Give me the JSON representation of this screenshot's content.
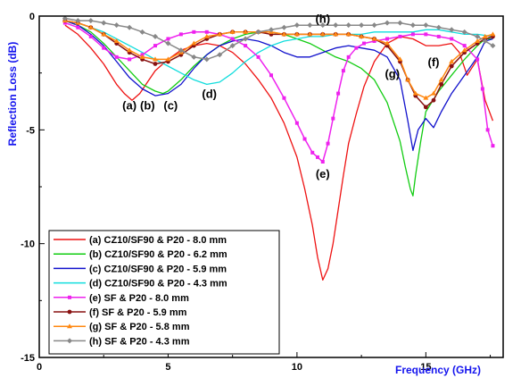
{
  "chart_data": {
    "type": "line",
    "title": "",
    "xlabel": "Frequency (GHz)",
    "ylabel": "Reflection Loss (dB)",
    "xlim": [
      0,
      18
    ],
    "ylim": [
      -15,
      0
    ],
    "x_ticks": [
      "0",
      "5",
      "10",
      "15"
    ],
    "y_ticks": [
      "0",
      "-5",
      "-10",
      "-15"
    ],
    "grid": false,
    "legend_position": "bottom-left",
    "series": [
      {
        "name": "(a) CZ10/SF90 & P20 - 8.0 mm",
        "color": "#ee1111",
        "marker": "none",
        "label": "(a)",
        "x": [
          1.0,
          1.5,
          2.0,
          2.5,
          3.0,
          3.3,
          3.6,
          3.9,
          4.2,
          4.5,
          5.0,
          5.5,
          6.0,
          6.5,
          7.0,
          7.5,
          8.0,
          8.5,
          9.0,
          9.5,
          10.0,
          10.3,
          10.6,
          10.8,
          11.0,
          11.2,
          11.4,
          11.6,
          11.8,
          12.0,
          12.3,
          12.6,
          13.0,
          13.5,
          14.0,
          14.5,
          15.0,
          15.5,
          16.0,
          16.3,
          16.6,
          17.0,
          17.3,
          17.6
        ],
        "y": [
          -0.4,
          -0.8,
          -1.4,
          -2.1,
          -3.0,
          -3.4,
          -3.7,
          -3.4,
          -2.9,
          -2.4,
          -1.9,
          -1.5,
          -1.3,
          -1.2,
          -1.3,
          -1.6,
          -2.1,
          -2.8,
          -3.6,
          -4.7,
          -6.2,
          -7.6,
          -9.2,
          -10.6,
          -11.6,
          -11.1,
          -10.0,
          -8.5,
          -7.0,
          -5.6,
          -4.3,
          -3.1,
          -2.0,
          -1.2,
          -0.9,
          -1.0,
          -1.3,
          -1.3,
          -1.2,
          -1.6,
          -2.6,
          -1.9,
          -3.7,
          -4.6
        ]
      },
      {
        "name": "(b) CZ10/SF90 & P20 - 6.2 mm",
        "color": "#11cc11",
        "marker": "none",
        "label": "(b)",
        "x": [
          1.0,
          1.5,
          2.0,
          2.5,
          3.0,
          3.5,
          4.0,
          4.5,
          4.8,
          5.0,
          5.5,
          6.0,
          6.5,
          7.0,
          7.5,
          8.0,
          8.5,
          9.0,
          9.5,
          10.0,
          10.5,
          11.0,
          11.5,
          12.0,
          12.5,
          13.0,
          13.5,
          14.0,
          14.2,
          14.4,
          14.5,
          14.6,
          14.8,
          15.0,
          15.5,
          16.0,
          16.5,
          17.0,
          17.3,
          17.6
        ],
        "y": [
          -0.2,
          -0.4,
          -0.7,
          -1.2,
          -1.8,
          -2.4,
          -3.0,
          -3.3,
          -3.4,
          -3.3,
          -2.8,
          -2.2,
          -1.7,
          -1.3,
          -1.0,
          -0.8,
          -0.7,
          -0.7,
          -0.8,
          -1.0,
          -1.2,
          -1.5,
          -1.8,
          -2.0,
          -2.3,
          -2.8,
          -3.8,
          -5.5,
          -6.6,
          -7.6,
          -7.9,
          -7.0,
          -5.5,
          -4.2,
          -3.3,
          -2.6,
          -1.9,
          -1.3,
          -1.0,
          -1.0
        ]
      },
      {
        "name": "(c) CZ10/SF90 & P20 - 5.9 mm",
        "color": "#1111cc",
        "marker": "none",
        "label": "(c)",
        "x": [
          1.0,
          1.5,
          2.0,
          2.5,
          3.0,
          3.5,
          4.0,
          4.5,
          5.0,
          5.5,
          6.0,
          6.5,
          7.0,
          7.5,
          8.0,
          8.5,
          9.0,
          9.5,
          10.0,
          10.5,
          11.0,
          11.5,
          12.0,
          12.5,
          13.0,
          13.5,
          14.0,
          14.3,
          14.5,
          14.7,
          15.0,
          15.3,
          15.6,
          16.0,
          16.5,
          17.0,
          17.3,
          17.6
        ],
        "y": [
          -0.2,
          -0.4,
          -0.8,
          -1.3,
          -2.0,
          -2.7,
          -3.2,
          -3.5,
          -3.4,
          -3.0,
          -2.3,
          -1.7,
          -1.3,
          -1.1,
          -1.0,
          -1.1,
          -1.3,
          -1.6,
          -1.8,
          -1.8,
          -1.6,
          -1.4,
          -1.3,
          -1.4,
          -1.5,
          -1.8,
          -2.8,
          -4.6,
          -5.9,
          -5.0,
          -4.5,
          -4.9,
          -4.2,
          -3.4,
          -2.6,
          -1.8,
          -1.1,
          -1.0
        ]
      },
      {
        "name": "(d) CZ10/SF90 & P20 - 4.3 mm",
        "color": "#11dddd",
        "marker": "none",
        "label": "(d)",
        "x": [
          1.0,
          1.5,
          2.0,
          2.5,
          3.0,
          3.5,
          4.0,
          4.5,
          5.0,
          5.5,
          6.0,
          6.5,
          7.0,
          7.5,
          8.0,
          8.5,
          9.0,
          9.5,
          10.0,
          10.5,
          11.0,
          11.5,
          12.0,
          12.5,
          13.0,
          13.5,
          14.0,
          14.5,
          15.0,
          15.5,
          16.0,
          16.5,
          17.0,
          17.6
        ],
        "y": [
          -0.2,
          -0.3,
          -0.5,
          -0.7,
          -1.0,
          -1.3,
          -1.6,
          -1.9,
          -2.2,
          -2.5,
          -2.8,
          -3.0,
          -2.9,
          -2.5,
          -2.0,
          -1.6,
          -1.3,
          -1.1,
          -1.0,
          -0.9,
          -0.9,
          -0.8,
          -0.8,
          -0.8,
          -0.7,
          -0.7,
          -0.7,
          -0.7,
          -0.6,
          -0.6,
          -0.7,
          -0.8,
          -0.8,
          -0.9
        ]
      },
      {
        "name": "(e) SF & P20 - 8.0 mm",
        "color": "#ee22ee",
        "marker": "square",
        "label": "(e)",
        "x": [
          1.0,
          1.5,
          2.0,
          2.5,
          3.0,
          3.5,
          4.0,
          4.5,
          5.0,
          5.5,
          6.0,
          6.5,
          7.0,
          7.5,
          8.0,
          8.5,
          9.0,
          9.5,
          10.0,
          10.3,
          10.6,
          10.8,
          11.0,
          11.2,
          11.4,
          11.6,
          11.8,
          12.0,
          12.3,
          12.6,
          13.0,
          13.5,
          14.0,
          14.5,
          15.0,
          15.5,
          16.0,
          16.5,
          17.0,
          17.2,
          17.4,
          17.6
        ],
        "y": [
          -0.3,
          -0.5,
          -0.9,
          -1.4,
          -1.8,
          -1.9,
          -1.7,
          -1.3,
          -1.0,
          -0.8,
          -0.7,
          -0.7,
          -0.8,
          -1.0,
          -1.3,
          -1.8,
          -2.6,
          -3.6,
          -4.7,
          -5.4,
          -6.0,
          -6.2,
          -6.4,
          -5.6,
          -4.5,
          -3.4,
          -2.4,
          -1.8,
          -1.4,
          -1.2,
          -1.1,
          -1.0,
          -0.9,
          -0.8,
          -0.8,
          -0.9,
          -1.0,
          -1.3,
          -1.9,
          -3.2,
          -5.0,
          -5.7
        ]
      },
      {
        "name": "(f) SF & P20 - 5.9 mm",
        "color": "#881111",
        "marker": "circle",
        "label": "(f)",
        "x": [
          1.0,
          1.5,
          2.0,
          2.5,
          3.0,
          3.5,
          4.0,
          4.5,
          5.0,
          5.5,
          6.0,
          6.5,
          7.0,
          7.5,
          8.0,
          8.5,
          9.0,
          9.5,
          10.0,
          10.5,
          11.0,
          11.5,
          12.0,
          12.5,
          13.0,
          13.5,
          14.0,
          14.3,
          14.6,
          15.0,
          15.3,
          15.6,
          16.0,
          16.5,
          17.0,
          17.3,
          17.6
        ],
        "y": [
          -0.2,
          -0.3,
          -0.5,
          -0.8,
          -1.2,
          -1.6,
          -1.9,
          -2.1,
          -2.0,
          -1.7,
          -1.3,
          -1.0,
          -0.8,
          -0.7,
          -0.7,
          -0.7,
          -0.8,
          -0.8,
          -0.8,
          -0.8,
          -0.8,
          -0.8,
          -0.8,
          -0.9,
          -1.0,
          -1.3,
          -2.0,
          -2.8,
          -3.5,
          -4.0,
          -3.7,
          -3.0,
          -2.2,
          -1.6,
          -1.2,
          -1.0,
          -0.9
        ]
      },
      {
        "name": "(g) SF & P20 - 5.8 mm",
        "color": "#ff8811",
        "marker": "triangle",
        "label": "(g)",
        "x": [
          1.0,
          1.5,
          2.0,
          2.5,
          3.0,
          3.5,
          4.0,
          4.5,
          5.0,
          5.5,
          6.0,
          6.5,
          7.0,
          7.5,
          8.0,
          8.5,
          9.0,
          9.5,
          10.0,
          10.5,
          11.0,
          11.5,
          12.0,
          12.5,
          13.0,
          13.5,
          14.0,
          14.3,
          14.6,
          15.0,
          15.3,
          15.6,
          16.0,
          16.5,
          17.0,
          17.3,
          17.6
        ],
        "y": [
          -0.2,
          -0.3,
          -0.5,
          -0.8,
          -1.1,
          -1.5,
          -1.8,
          -1.9,
          -1.9,
          -1.6,
          -1.2,
          -0.9,
          -0.8,
          -0.7,
          -0.7,
          -0.7,
          -0.7,
          -0.8,
          -0.8,
          -0.8,
          -0.8,
          -0.8,
          -0.8,
          -0.9,
          -1.0,
          -1.2,
          -1.9,
          -2.8,
          -3.4,
          -3.6,
          -3.4,
          -2.8,
          -2.0,
          -1.5,
          -1.1,
          -0.9,
          -0.8
        ]
      },
      {
        "name": "(h) SF & P20 - 4.3 mm",
        "color": "#888888",
        "marker": "diamond",
        "label": "(h)",
        "x": [
          1.0,
          1.5,
          2.0,
          2.5,
          3.0,
          3.5,
          4.0,
          4.5,
          5.0,
          5.5,
          6.0,
          6.5,
          7.0,
          7.5,
          8.0,
          8.5,
          9.0,
          9.5,
          10.0,
          10.5,
          11.0,
          11.5,
          12.0,
          12.5,
          13.0,
          13.5,
          14.0,
          14.5,
          15.0,
          15.5,
          16.0,
          16.5,
          17.0,
          17.3,
          17.6
        ],
        "y": [
          -0.1,
          -0.2,
          -0.2,
          -0.3,
          -0.4,
          -0.5,
          -0.7,
          -0.9,
          -1.2,
          -1.5,
          -1.8,
          -1.9,
          -1.7,
          -1.3,
          -1.0,
          -0.7,
          -0.6,
          -0.5,
          -0.4,
          -0.4,
          -0.4,
          -0.4,
          -0.4,
          -0.4,
          -0.4,
          -0.3,
          -0.3,
          -0.4,
          -0.4,
          -0.5,
          -0.6,
          -0.7,
          -0.9,
          -1.1,
          -1.3
        ]
      }
    ],
    "annotations": [
      {
        "text": "(a)",
        "x": 3.5,
        "y": -4.1
      },
      {
        "text": "(b)",
        "x": 4.2,
        "y": -4.1
      },
      {
        "text": "(c)",
        "x": 5.1,
        "y": -4.1
      },
      {
        "text": "(d)",
        "x": 6.6,
        "y": -3.6
      },
      {
        "text": "(e)",
        "x": 11.0,
        "y": -7.1
      },
      {
        "text": "(f)",
        "x": 15.3,
        "y": -2.2
      },
      {
        "text": "(g)",
        "x": 13.7,
        "y": -2.7
      },
      {
        "text": "(h)",
        "x": 11.0,
        "y": -0.3
      }
    ]
  }
}
